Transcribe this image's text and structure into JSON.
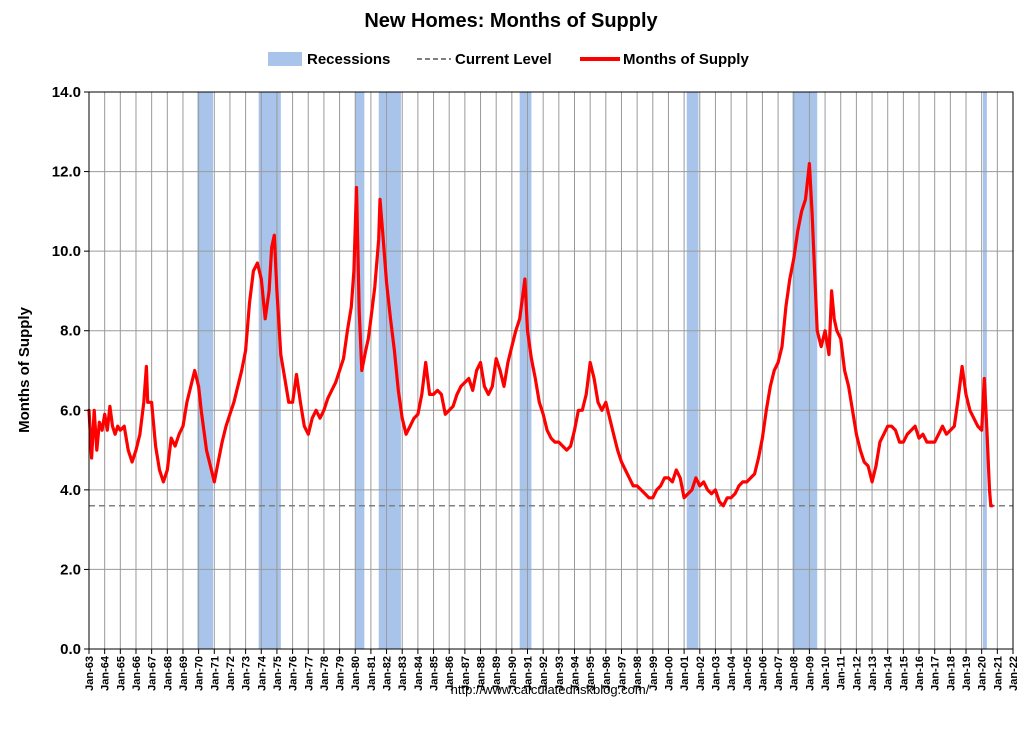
{
  "chart_data": {
    "type": "line",
    "title": "New Homes: Months of Supply",
    "ylabel": "Months of Supply",
    "xlabel": "",
    "source": "http://www.calculatedriskblog.com/",
    "ylim": [
      0,
      14
    ],
    "xlim": [
      1963,
      2022
    ],
    "grid": true,
    "legend_position": "top",
    "yticks": [
      {
        "value": 0,
        "label": "0.0"
      },
      {
        "value": 2,
        "label": "2.0"
      },
      {
        "value": 4,
        "label": "4.0"
      },
      {
        "value": 6,
        "label": "6.0"
      },
      {
        "value": 8,
        "label": "8.0"
      },
      {
        "value": 10,
        "label": "10.0"
      },
      {
        "value": 12,
        "label": "12.0"
      },
      {
        "value": 14,
        "label": "14.0"
      }
    ],
    "xticks": [
      "Jan-63",
      "Jan-64",
      "Jan-65",
      "Jan-66",
      "Jan-67",
      "Jan-68",
      "Jan-69",
      "Jan-70",
      "Jan-71",
      "Jan-72",
      "Jan-73",
      "Jan-74",
      "Jan-75",
      "Jan-76",
      "Jan-77",
      "Jan-78",
      "Jan-79",
      "Jan-80",
      "Jan-81",
      "Jan-82",
      "Jan-83",
      "Jan-84",
      "Jan-85",
      "Jan-86",
      "Jan-87",
      "Jan-88",
      "Jan-89",
      "Jan-90",
      "Jan-91",
      "Jan-92",
      "Jan-93",
      "Jan-94",
      "Jan-95",
      "Jan-96",
      "Jan-97",
      "Jan-98",
      "Jan-99",
      "Jan-00",
      "Jan-01",
      "Jan-02",
      "Jan-03",
      "Jan-04",
      "Jan-05",
      "Jan-06",
      "Jan-07",
      "Jan-08",
      "Jan-09",
      "Jan-10",
      "Jan-11",
      "Jan-12",
      "Jan-13",
      "Jan-14",
      "Jan-15",
      "Jan-16",
      "Jan-17",
      "Jan-18",
      "Jan-19",
      "Jan-20",
      "Jan-21",
      "Jan-22"
    ],
    "legend": [
      {
        "label": "Recessions",
        "kind": "area",
        "color": "#a9c4eb"
      },
      {
        "label": "Current Level",
        "kind": "dashed",
        "color": "#808080"
      },
      {
        "label": "Months of Supply",
        "kind": "line",
        "color": "#ff0000"
      }
    ],
    "current_level": 3.6,
    "recessions": [
      {
        "start": "Dec-69",
        "end": "Nov-70"
      },
      {
        "start": "Nov-73",
        "end": "Mar-75"
      },
      {
        "start": "Jan-80",
        "end": "Jul-80"
      },
      {
        "start": "Jul-81",
        "end": "Nov-82"
      },
      {
        "start": "Jul-90",
        "end": "Mar-91"
      },
      {
        "start": "Mar-01",
        "end": "Nov-01"
      },
      {
        "start": "Dec-07",
        "end": "Jun-09"
      },
      {
        "start": "Feb-20",
        "end": "Apr-20"
      }
    ],
    "series": [
      {
        "name": "Months of Supply",
        "color": "#ff0000",
        "points": [
          [
            "Jan-63",
            6.0
          ],
          [
            "Mar-63",
            4.8
          ],
          [
            "May-63",
            6.0
          ],
          [
            "Jul-63",
            5.0
          ],
          [
            "Sep-63",
            5.7
          ],
          [
            "Nov-63",
            5.5
          ],
          [
            "Jan-64",
            5.9
          ],
          [
            "Mar-64",
            5.5
          ],
          [
            "May-64",
            6.1
          ],
          [
            "Jul-64",
            5.6
          ],
          [
            "Sep-64",
            5.4
          ],
          [
            "Nov-64",
            5.6
          ],
          [
            "Jan-65",
            5.5
          ],
          [
            "Apr-65",
            5.6
          ],
          [
            "Jul-65",
            5.0
          ],
          [
            "Oct-65",
            4.7
          ],
          [
            "Jan-66",
            5.0
          ],
          [
            "Apr-66",
            5.4
          ],
          [
            "Jul-66",
            6.2
          ],
          [
            "Sep-66",
            7.1
          ],
          [
            "Oct-66",
            6.2
          ],
          [
            "Jan-67",
            6.2
          ],
          [
            "Apr-67",
            5.1
          ],
          [
            "Jul-67",
            4.5
          ],
          [
            "Oct-67",
            4.2
          ],
          [
            "Jan-68",
            4.5
          ],
          [
            "Apr-68",
            5.3
          ],
          [
            "Jul-68",
            5.1
          ],
          [
            "Oct-68",
            5.4
          ],
          [
            "Jan-69",
            5.6
          ],
          [
            "Apr-69",
            6.2
          ],
          [
            "Jul-69",
            6.6
          ],
          [
            "Oct-69",
            7.0
          ],
          [
            "Jan-70",
            6.6
          ],
          [
            "Mar-70",
            6.0
          ],
          [
            "Jul-70",
            5.0
          ],
          [
            "Oct-70",
            4.6
          ],
          [
            "Jan-71",
            4.2
          ],
          [
            "Apr-71",
            4.7
          ],
          [
            "Jul-71",
            5.2
          ],
          [
            "Oct-71",
            5.6
          ],
          [
            "Jan-72",
            5.9
          ],
          [
            "Apr-72",
            6.2
          ],
          [
            "Jul-72",
            6.6
          ],
          [
            "Oct-72",
            7.0
          ],
          [
            "Jan-73",
            7.5
          ],
          [
            "Apr-73",
            8.7
          ],
          [
            "Jul-73",
            9.5
          ],
          [
            "Oct-73",
            9.7
          ],
          [
            "Jan-74",
            9.3
          ],
          [
            "Apr-74",
            8.3
          ],
          [
            "Jul-74",
            9.0
          ],
          [
            "Sep-74",
            10.1
          ],
          [
            "Nov-74",
            10.4
          ],
          [
            "Jan-75",
            9.0
          ],
          [
            "Apr-75",
            7.4
          ],
          [
            "Jul-75",
            6.8
          ],
          [
            "Oct-75",
            6.2
          ],
          [
            "Jan-76",
            6.2
          ],
          [
            "Apr-76",
            6.9
          ],
          [
            "Jul-76",
            6.2
          ],
          [
            "Oct-76",
            5.6
          ],
          [
            "Jan-77",
            5.4
          ],
          [
            "Apr-77",
            5.8
          ],
          [
            "Jul-77",
            6.0
          ],
          [
            "Oct-77",
            5.8
          ],
          [
            "Jan-78",
            6.0
          ],
          [
            "Apr-78",
            6.3
          ],
          [
            "Jul-78",
            6.5
          ],
          [
            "Oct-78",
            6.7
          ],
          [
            "Jan-79",
            7.0
          ],
          [
            "Apr-79",
            7.3
          ],
          [
            "Jul-79",
            8.0
          ],
          [
            "Oct-79",
            8.6
          ],
          [
            "Dec-79",
            9.5
          ],
          [
            "Feb-80",
            11.6
          ],
          [
            "Apr-80",
            8.5
          ],
          [
            "Jun-80",
            7.0
          ],
          [
            "Sep-80",
            7.5
          ],
          [
            "Nov-80",
            7.8
          ],
          [
            "Jan-81",
            8.3
          ],
          [
            "Apr-81",
            9.1
          ],
          [
            "Jul-81",
            10.3
          ],
          [
            "Aug-81",
            11.3
          ],
          [
            "Oct-81",
            10.5
          ],
          [
            "Jan-82",
            9.2
          ],
          [
            "Apr-82",
            8.3
          ],
          [
            "Jul-82",
            7.5
          ],
          [
            "Oct-82",
            6.5
          ],
          [
            "Jan-83",
            5.8
          ],
          [
            "Apr-83",
            5.4
          ],
          [
            "Jul-83",
            5.6
          ],
          [
            "Oct-83",
            5.8
          ],
          [
            "Jan-84",
            5.9
          ],
          [
            "Apr-84",
            6.4
          ],
          [
            "Jul-84",
            7.2
          ],
          [
            "Oct-84",
            6.4
          ],
          [
            "Jan-85",
            6.4
          ],
          [
            "Apr-85",
            6.5
          ],
          [
            "Jul-85",
            6.4
          ],
          [
            "Oct-85",
            5.9
          ],
          [
            "Jan-86",
            6.0
          ],
          [
            "Apr-86",
            6.1
          ],
          [
            "Jul-86",
            6.4
          ],
          [
            "Oct-86",
            6.6
          ],
          [
            "Jan-87",
            6.7
          ],
          [
            "Apr-87",
            6.8
          ],
          [
            "Jul-87",
            6.5
          ],
          [
            "Oct-87",
            7.0
          ],
          [
            "Jan-88",
            7.2
          ],
          [
            "Apr-88",
            6.6
          ],
          [
            "Jul-88",
            6.4
          ],
          [
            "Oct-88",
            6.6
          ],
          [
            "Jan-89",
            7.3
          ],
          [
            "Apr-89",
            7.0
          ],
          [
            "Jul-89",
            6.6
          ],
          [
            "Oct-89",
            7.2
          ],
          [
            "Jan-90",
            7.6
          ],
          [
            "Apr-90",
            8.0
          ],
          [
            "Jul-90",
            8.3
          ],
          [
            "Sep-90",
            8.8
          ],
          [
            "Nov-90",
            9.3
          ],
          [
            "Jan-91",
            8.0
          ],
          [
            "Apr-91",
            7.3
          ],
          [
            "Jul-91",
            6.8
          ],
          [
            "Oct-91",
            6.2
          ],
          [
            "Jan-92",
            5.9
          ],
          [
            "Apr-92",
            5.5
          ],
          [
            "Jul-92",
            5.3
          ],
          [
            "Oct-92",
            5.2
          ],
          [
            "Jan-93",
            5.2
          ],
          [
            "Apr-93",
            5.1
          ],
          [
            "Jul-93",
            5.0
          ],
          [
            "Oct-93",
            5.1
          ],
          [
            "Jan-94",
            5.5
          ],
          [
            "Apr-94",
            6.0
          ],
          [
            "Jul-94",
            6.0
          ],
          [
            "Oct-94",
            6.4
          ],
          [
            "Jan-95",
            7.2
          ],
          [
            "Apr-95",
            6.8
          ],
          [
            "Jul-95",
            6.2
          ],
          [
            "Oct-95",
            6.0
          ],
          [
            "Jan-96",
            6.2
          ],
          [
            "Apr-96",
            5.8
          ],
          [
            "Jul-96",
            5.4
          ],
          [
            "Oct-96",
            5.0
          ],
          [
            "Jan-97",
            4.7
          ],
          [
            "Apr-97",
            4.5
          ],
          [
            "Jul-97",
            4.3
          ],
          [
            "Oct-97",
            4.1
          ],
          [
            "Jan-98",
            4.1
          ],
          [
            "Apr-98",
            4.0
          ],
          [
            "Jul-98",
            3.9
          ],
          [
            "Oct-98",
            3.8
          ],
          [
            "Jan-99",
            3.8
          ],
          [
            "Apr-99",
            4.0
          ],
          [
            "Jul-99",
            4.1
          ],
          [
            "Oct-99",
            4.3
          ],
          [
            "Jan-00",
            4.3
          ],
          [
            "Apr-00",
            4.2
          ],
          [
            "Jul-00",
            4.5
          ],
          [
            "Oct-00",
            4.3
          ],
          [
            "Jan-01",
            3.8
          ],
          [
            "Apr-01",
            3.9
          ],
          [
            "Jul-01",
            4.0
          ],
          [
            "Oct-01",
            4.3
          ],
          [
            "Jan-02",
            4.1
          ],
          [
            "Apr-02",
            4.2
          ],
          [
            "Jul-02",
            4.0
          ],
          [
            "Oct-02",
            3.9
          ],
          [
            "Jan-03",
            4.0
          ],
          [
            "Apr-03",
            3.7
          ],
          [
            "Jul-03",
            3.6
          ],
          [
            "Oct-03",
            3.8
          ],
          [
            "Jan-04",
            3.8
          ],
          [
            "Apr-04",
            3.9
          ],
          [
            "Jul-04",
            4.1
          ],
          [
            "Oct-04",
            4.2
          ],
          [
            "Jan-05",
            4.2
          ],
          [
            "Apr-05",
            4.3
          ],
          [
            "Jul-05",
            4.4
          ],
          [
            "Oct-05",
            4.8
          ],
          [
            "Jan-06",
            5.3
          ],
          [
            "Apr-06",
            6.0
          ],
          [
            "Jul-06",
            6.6
          ],
          [
            "Oct-06",
            7.0
          ],
          [
            "Jan-07",
            7.2
          ],
          [
            "Apr-07",
            7.6
          ],
          [
            "Jul-07",
            8.6
          ],
          [
            "Oct-07",
            9.3
          ],
          [
            "Jan-08",
            9.8
          ],
          [
            "Apr-08",
            10.5
          ],
          [
            "Jul-08",
            11.0
          ],
          [
            "Oct-08",
            11.3
          ],
          [
            "Jan-09",
            12.2
          ],
          [
            "Mar-09",
            11.0
          ],
          [
            "May-09",
            9.5
          ],
          [
            "Jul-09",
            8.0
          ],
          [
            "Oct-09",
            7.6
          ],
          [
            "Jan-10",
            8.0
          ],
          [
            "Apr-10",
            7.4
          ],
          [
            "Jun-10",
            9.0
          ],
          [
            "Aug-10",
            8.3
          ],
          [
            "Oct-10",
            8.0
          ],
          [
            "Jan-11",
            7.8
          ],
          [
            "Apr-11",
            7.0
          ],
          [
            "Jul-11",
            6.6
          ],
          [
            "Oct-11",
            6.0
          ],
          [
            "Jan-12",
            5.4
          ],
          [
            "Apr-12",
            5.0
          ],
          [
            "Jul-12",
            4.7
          ],
          [
            "Oct-12",
            4.6
          ],
          [
            "Jan-13",
            4.2
          ],
          [
            "Apr-13",
            4.6
          ],
          [
            "Jul-13",
            5.2
          ],
          [
            "Oct-13",
            5.4
          ],
          [
            "Jan-14",
            5.6
          ],
          [
            "Apr-14",
            5.6
          ],
          [
            "Jul-14",
            5.5
          ],
          [
            "Oct-14",
            5.2
          ],
          [
            "Jan-15",
            5.2
          ],
          [
            "Apr-15",
            5.4
          ],
          [
            "Jul-15",
            5.5
          ],
          [
            "Oct-15",
            5.6
          ],
          [
            "Jan-16",
            5.3
          ],
          [
            "Apr-16",
            5.4
          ],
          [
            "Jul-16",
            5.2
          ],
          [
            "Oct-16",
            5.2
          ],
          [
            "Jan-17",
            5.2
          ],
          [
            "Apr-17",
            5.4
          ],
          [
            "Jul-17",
            5.6
          ],
          [
            "Oct-17",
            5.4
          ],
          [
            "Jan-18",
            5.5
          ],
          [
            "Apr-18",
            5.6
          ],
          [
            "Jul-18",
            6.3
          ],
          [
            "Oct-18",
            7.1
          ],
          [
            "Jan-19",
            6.4
          ],
          [
            "Apr-19",
            6.0
          ],
          [
            "Jul-19",
            5.8
          ],
          [
            "Oct-19",
            5.6
          ],
          [
            "Jan-20",
            5.5
          ],
          [
            "Mar-20",
            6.8
          ],
          [
            "May-20",
            5.5
          ],
          [
            "Jul-20",
            4.0
          ],
          [
            "Aug-20",
            3.6
          ],
          [
            "Sep-20",
            3.6
          ]
        ]
      }
    ]
  }
}
